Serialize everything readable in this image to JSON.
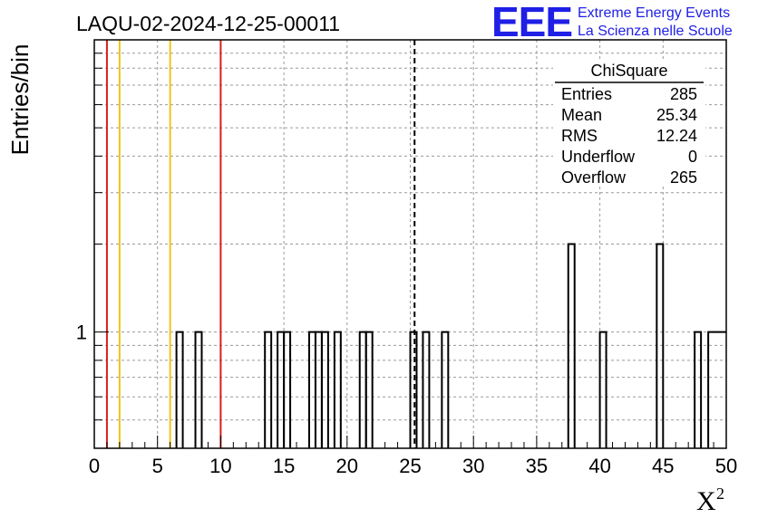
{
  "chart_data": {
    "type": "bar",
    "title": "LAQU-02-2024-12-25-00011",
    "ylabel": "Entries/bin",
    "xlabel_base": "X",
    "xlabel_sup": "2",
    "xlim": [
      0,
      50
    ],
    "y_scale": "log",
    "ylim": [
      0.4,
      10
    ],
    "x_ticks": [
      0,
      5,
      10,
      15,
      20,
      25,
      30,
      35,
      40,
      45,
      50
    ],
    "y_tick_labels": [
      {
        "value": 1,
        "label": "1"
      }
    ],
    "grid": true,
    "bin_width": 0.5,
    "bins": [
      {
        "x": 6.5,
        "count": 1
      },
      {
        "x": 8.0,
        "count": 1
      },
      {
        "x": 13.5,
        "count": 1
      },
      {
        "x": 14.5,
        "count": 1
      },
      {
        "x": 15.0,
        "count": 1
      },
      {
        "x": 17.0,
        "count": 1
      },
      {
        "x": 17.5,
        "count": 1
      },
      {
        "x": 18.0,
        "count": 1
      },
      {
        "x": 19.0,
        "count": 1
      },
      {
        "x": 21.0,
        "count": 1
      },
      {
        "x": 21.5,
        "count": 1
      },
      {
        "x": 25.0,
        "count": 1
      },
      {
        "x": 26.0,
        "count": 1
      },
      {
        "x": 27.5,
        "count": 1
      },
      {
        "x": 37.5,
        "count": 2
      },
      {
        "x": 40.0,
        "count": 1
      },
      {
        "x": 44.5,
        "count": 2
      },
      {
        "x": 47.5,
        "count": 1
      }
    ],
    "vertical_lines": [
      {
        "x": 1,
        "color": "#d42020",
        "style": "solid"
      },
      {
        "x": 2,
        "color": "#f0c419",
        "style": "solid"
      },
      {
        "x": 6,
        "color": "#f0c419",
        "style": "solid"
      },
      {
        "x": 10,
        "color": "#d42020",
        "style": "solid"
      },
      {
        "x": 25.34,
        "color": "#000000",
        "style": "dashed"
      }
    ],
    "stats_box": {
      "title": "ChiSquare",
      "rows": [
        {
          "label": "Entries",
          "value": "285"
        },
        {
          "label": "Mean",
          "value": "25.34"
        },
        {
          "label": "RMS",
          "value": "12.24"
        },
        {
          "label": "Underflow",
          "value": "0"
        },
        {
          "label": "Overflow",
          "value": "265"
        }
      ]
    }
  },
  "logo": {
    "text": "EEE",
    "line1": "Extreme Energy Events",
    "line2": "La Scienza nelle Scuole",
    "color": "#1f1fe6"
  }
}
